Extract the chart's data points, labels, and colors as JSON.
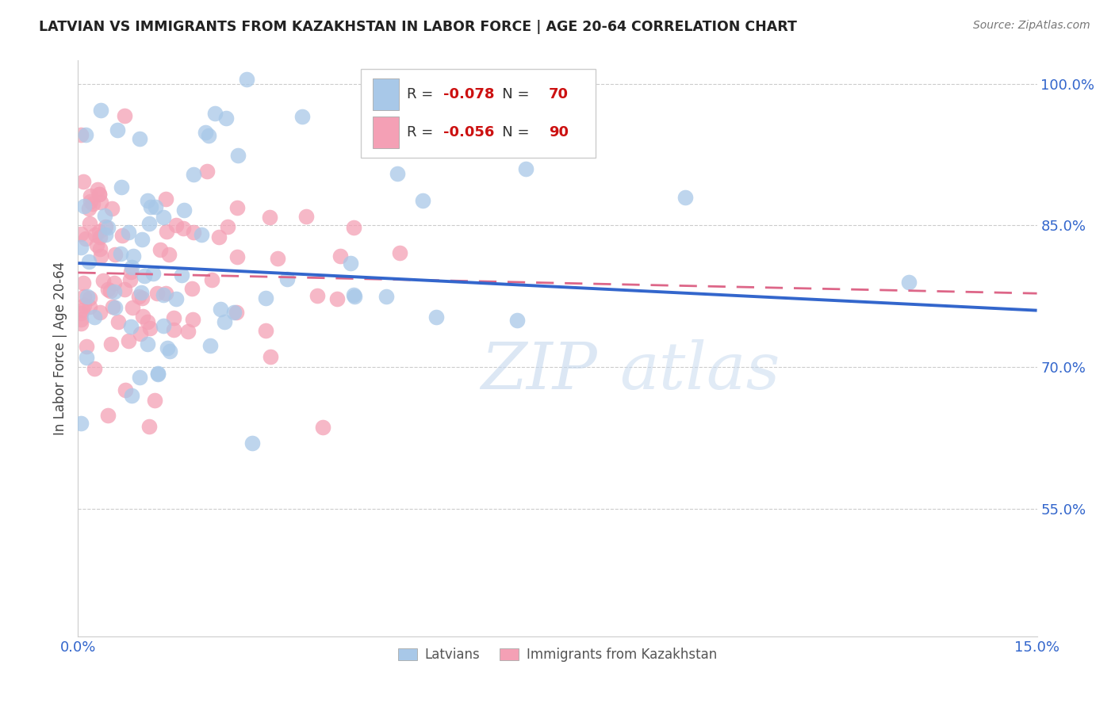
{
  "title": "LATVIAN VS IMMIGRANTS FROM KAZAKHSTAN IN LABOR FORCE | AGE 20-64 CORRELATION CHART",
  "source": "Source: ZipAtlas.com",
  "ylabel": "In Labor Force | Age 20-64",
  "yticks": [
    0.55,
    0.7,
    0.85,
    1.0
  ],
  "ytick_labels": [
    "55.0%",
    "70.0%",
    "85.0%",
    "100.0%"
  ],
  "xmin": 0.0,
  "xmax": 0.15,
  "ymin": 0.415,
  "ymax": 1.025,
  "legend_latvian_R": "-0.078",
  "legend_latvian_N": "70",
  "legend_kaz_R": "-0.056",
  "legend_kaz_N": "90",
  "color_latvian": "#a8c8e8",
  "color_kaz": "#f4a0b5",
  "color_latvian_line": "#3366cc",
  "color_kaz_line": "#dd6688",
  "watermark": "ZIPatlas",
  "lv_trend_x0": 0.0,
  "lv_trend_y0": 0.81,
  "lv_trend_x1": 0.15,
  "lv_trend_y1": 0.76,
  "kz_trend_x0": 0.0,
  "kz_trend_y0": 0.8,
  "kz_trend_x1": 0.15,
  "kz_trend_y1": 0.778
}
